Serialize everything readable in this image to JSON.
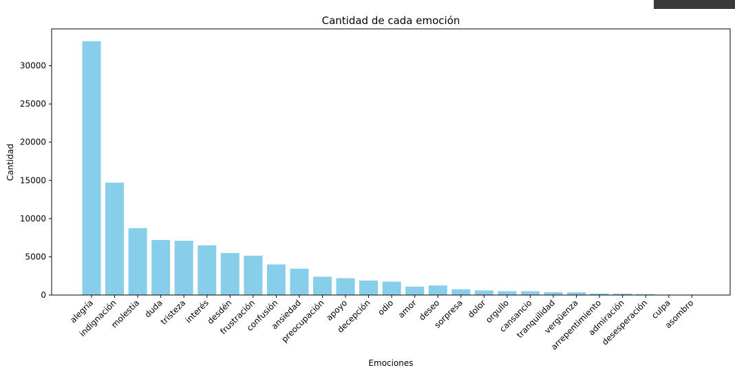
{
  "chart_data": {
    "type": "bar",
    "title": "Cantidad de cada emoción",
    "xlabel": "Emociones",
    "ylabel": "Cantidad",
    "ylim": [
      0,
      35000
    ],
    "yticks": [
      0,
      5000,
      10000,
      15000,
      20000,
      25000,
      30000
    ],
    "grid": false,
    "bar_color": "#87CEEB",
    "categories": [
      "alegría",
      "indignación",
      "molestia",
      "duda",
      "tristeza",
      "interés",
      "desdén",
      "frustración",
      "confusión",
      "ansiedad",
      "preocupación",
      "apoyo",
      "decepción",
      "odio",
      "amor",
      "deseo",
      "sorpresa",
      "dolor",
      "orgullo",
      "cansancio",
      "tranquilidad",
      "vergüenza",
      "arrepentimiento",
      "admiración",
      "desesperación",
      "culpa",
      "asombro"
    ],
    "values": [
      33200,
      14700,
      8750,
      7200,
      7100,
      6500,
      5500,
      5150,
      4000,
      3450,
      2400,
      2200,
      1900,
      1750,
      1100,
      1250,
      750,
      600,
      500,
      500,
      380,
      350,
      200,
      180,
      120,
      40,
      20
    ]
  }
}
